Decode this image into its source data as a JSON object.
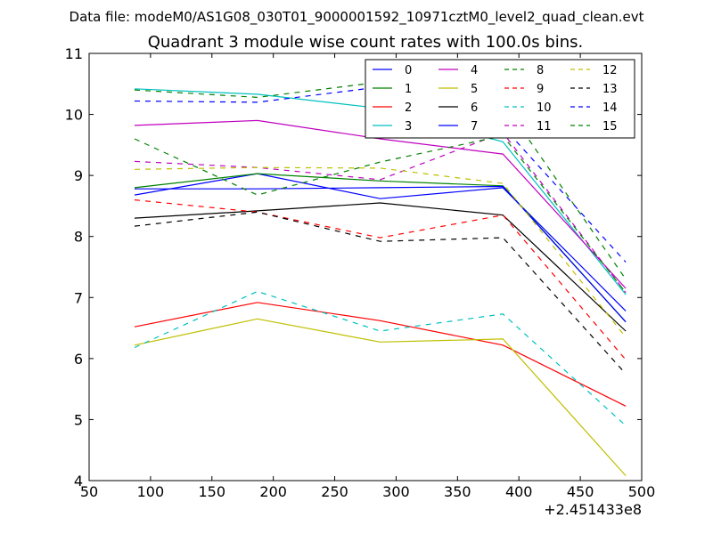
{
  "suptitle": "Data file: modeM0/AS1G08_030T01_9000001592_10971cztM0_level2_quad_clean.evt",
  "chart_data": {
    "type": "line",
    "title": "Quadrant 3 module wise count rates with 100.0s bins.",
    "xlabel": "",
    "ylabel": "",
    "x_offset_label": "+2.451433e8",
    "xlim": [
      50,
      500
    ],
    "ylim": [
      4,
      11
    ],
    "xticks": [
      50,
      100,
      150,
      200,
      250,
      300,
      350,
      400,
      450,
      500
    ],
    "yticks": [
      4,
      5,
      6,
      7,
      8,
      9,
      10,
      11
    ],
    "grid": false,
    "legend_position": "top-right",
    "legend_columns": 4,
    "x": [
      87,
      187,
      287,
      387,
      487
    ],
    "series": [
      {
        "name": "0",
        "color": "#0000ff",
        "dash": "solid",
        "values": [
          8.68,
          9.03,
          8.62,
          8.8,
          6.78
        ]
      },
      {
        "name": "1",
        "color": "#008000",
        "dash": "solid",
        "values": [
          8.8,
          9.03,
          8.91,
          8.83,
          6.6
        ]
      },
      {
        "name": "2",
        "color": "#ff0000",
        "dash": "solid",
        "values": [
          6.52,
          6.92,
          6.62,
          6.22,
          5.22
        ]
      },
      {
        "name": "3",
        "color": "#00bfbf",
        "dash": "solid",
        "values": [
          10.42,
          10.33,
          10.1,
          9.55,
          7.05
        ]
      },
      {
        "name": "4",
        "color": "#bf00bf",
        "dash": "solid",
        "values": [
          9.82,
          9.9,
          9.6,
          9.35,
          7.15
        ]
      },
      {
        "name": "5",
        "color": "#bfbf00",
        "dash": "solid",
        "values": [
          6.22,
          6.65,
          6.27,
          6.32,
          4.08
        ]
      },
      {
        "name": "6",
        "color": "#000000",
        "dash": "solid",
        "values": [
          8.3,
          8.42,
          8.55,
          8.35,
          6.45
        ]
      },
      {
        "name": "7",
        "color": "#0000ff",
        "dash": "solid",
        "values": [
          8.78,
          8.78,
          8.8,
          8.82,
          6.6
        ]
      },
      {
        "name": "8",
        "color": "#008000",
        "dash": "dashed",
        "values": [
          10.4,
          10.28,
          10.53,
          10.2,
          7.3
        ]
      },
      {
        "name": "9",
        "color": "#ff0000",
        "dash": "dashed",
        "values": [
          8.6,
          8.4,
          7.98,
          8.35,
          5.98
        ]
      },
      {
        "name": "10",
        "color": "#00bfbf",
        "dash": "dashed",
        "values": [
          6.18,
          7.1,
          6.45,
          6.73,
          4.9
        ]
      },
      {
        "name": "11",
        "color": "#bf00bf",
        "dash": "dashed",
        "values": [
          9.23,
          9.13,
          8.93,
          9.7,
          7.08
        ]
      },
      {
        "name": "12",
        "color": "#bfbf00",
        "dash": "dashed",
        "values": [
          9.1,
          9.13,
          9.12,
          8.87,
          6.35
        ]
      },
      {
        "name": "13",
        "color": "#000000",
        "dash": "dashed",
        "values": [
          8.17,
          8.4,
          7.92,
          7.98,
          5.75
        ]
      },
      {
        "name": "14",
        "color": "#0000ff",
        "dash": "dashed",
        "values": [
          10.22,
          10.2,
          10.45,
          9.8,
          7.58
        ]
      },
      {
        "name": "15",
        "color": "#008000",
        "dash": "dashed",
        "values": [
          9.6,
          8.68,
          9.22,
          9.65,
          7.08
        ]
      }
    ]
  }
}
